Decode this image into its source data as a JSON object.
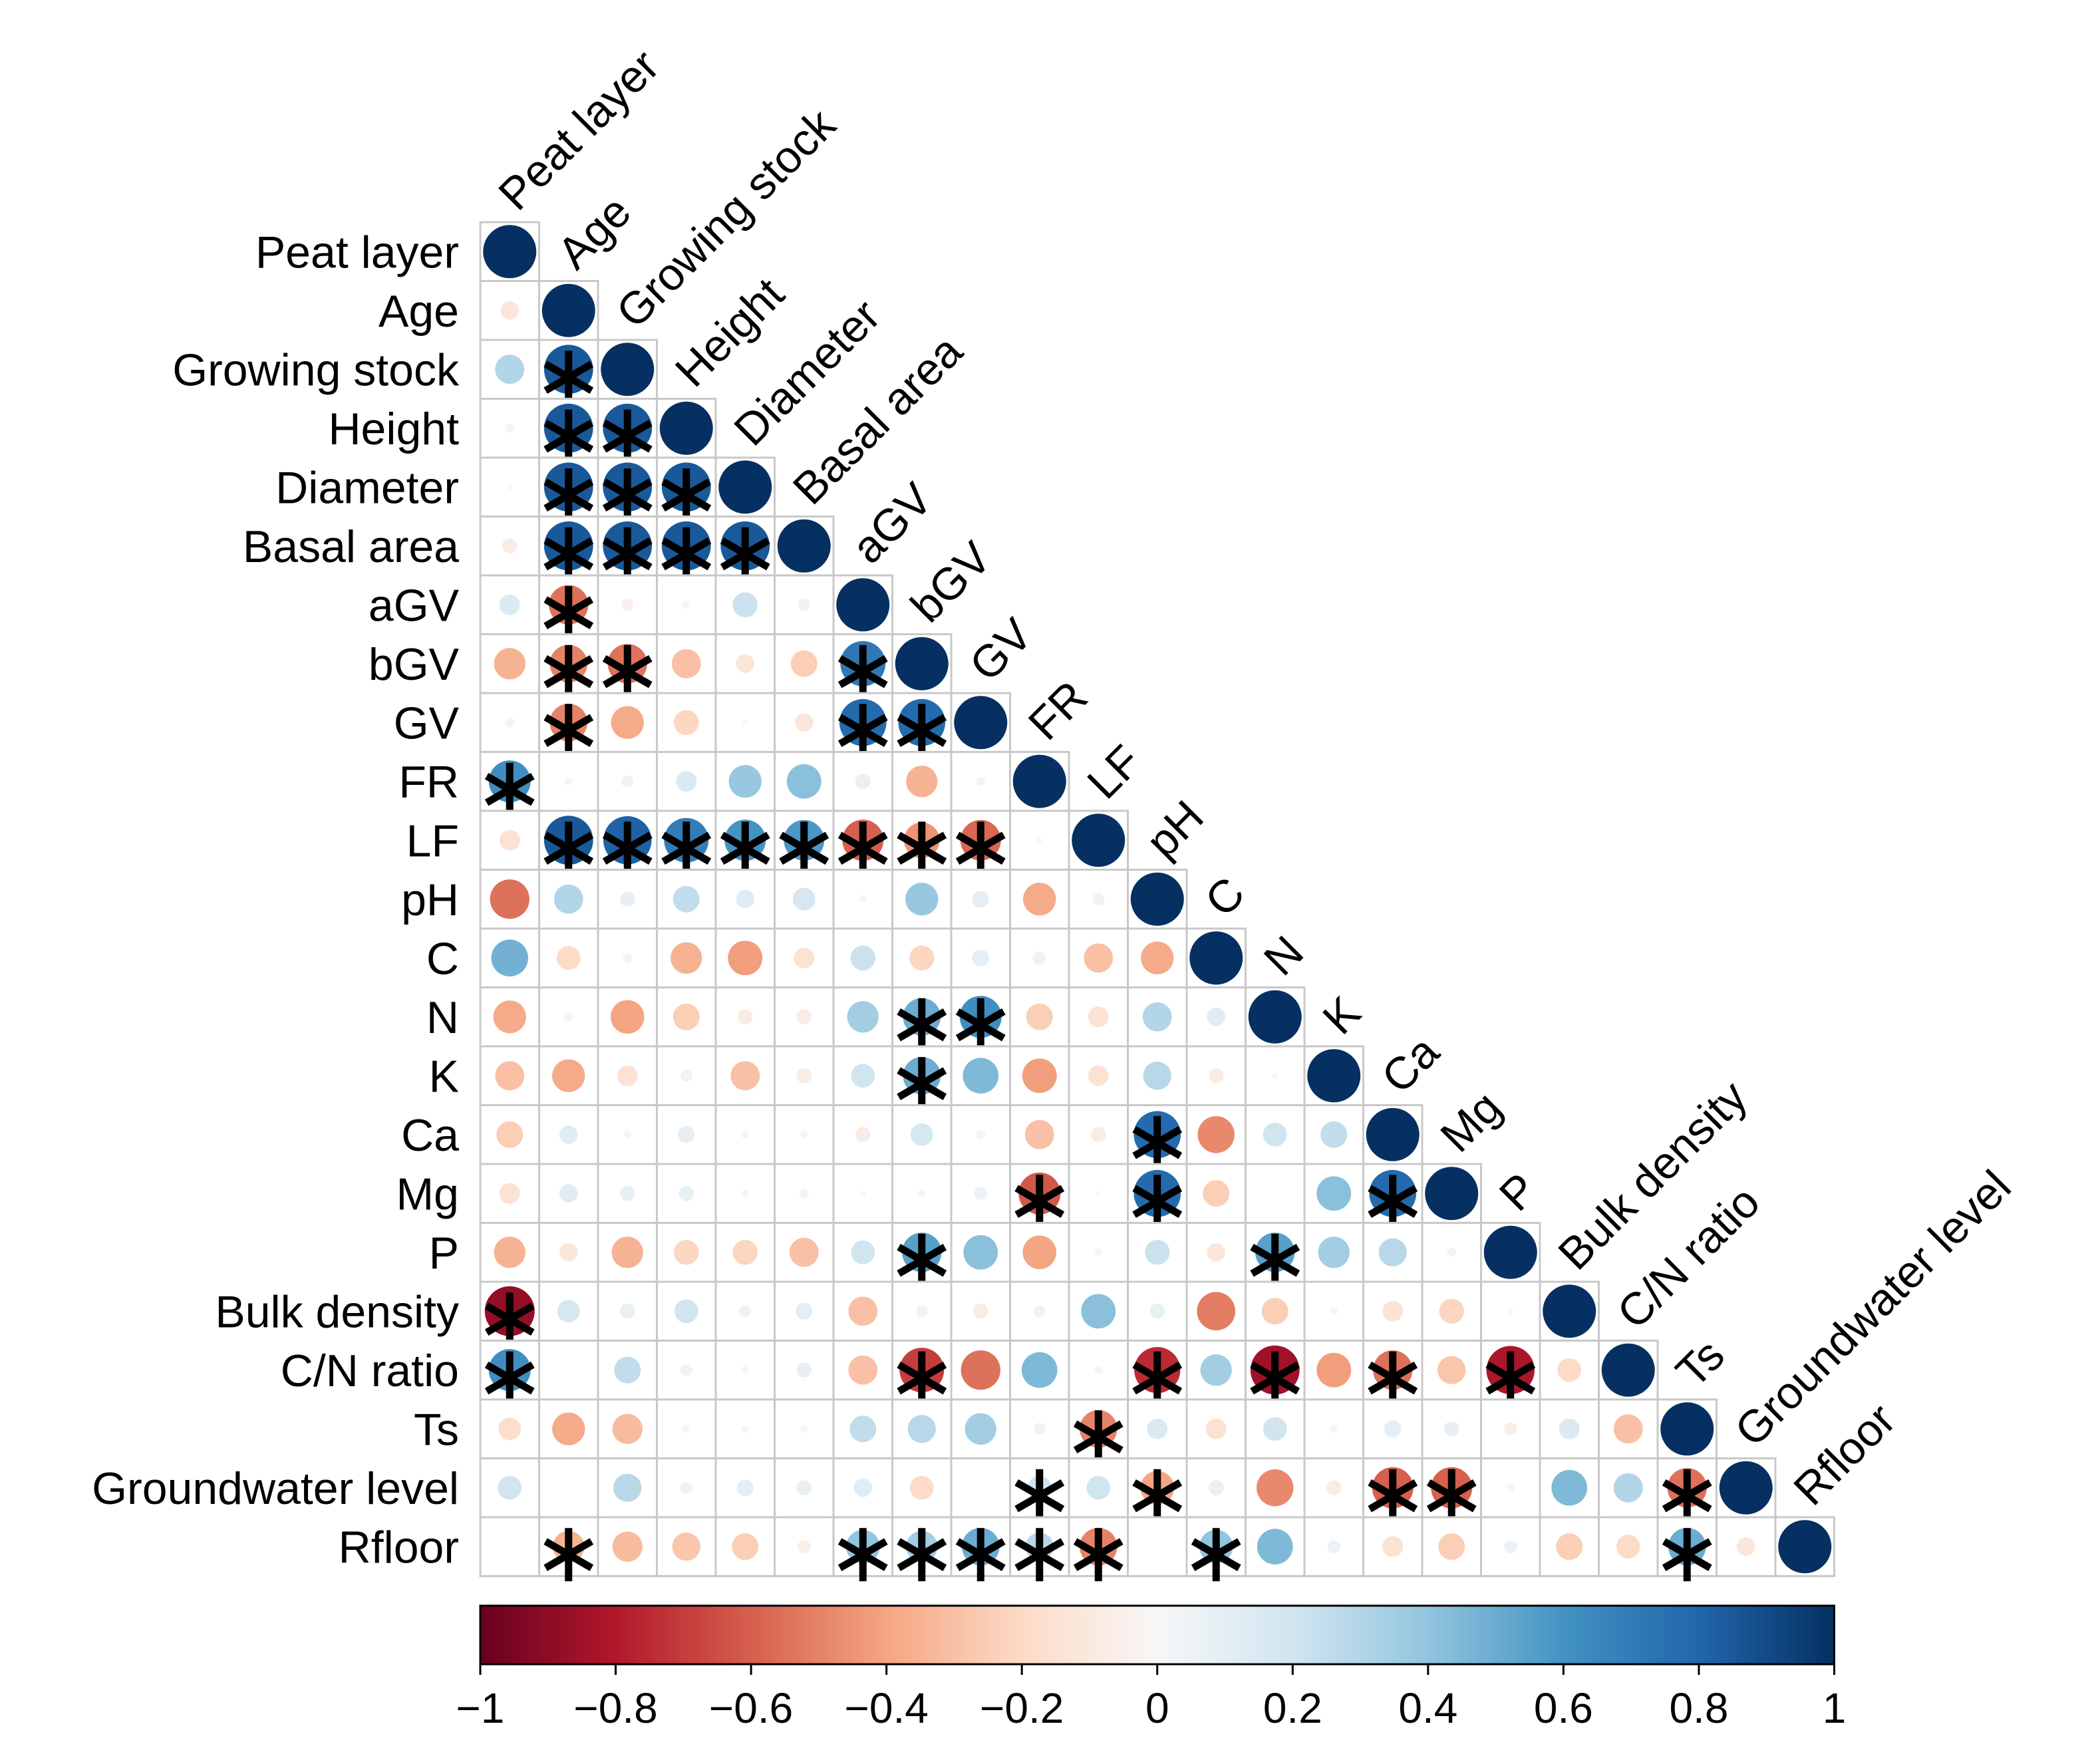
{
  "chart_data": {
    "type": "heatmap",
    "subtype": "correlation-lower-triangle",
    "title": "",
    "variables": [
      "Peat layer",
      "Age",
      "Growing stock",
      "Height",
      "Diameter",
      "Basal area",
      "aGV",
      "bGV",
      "GV",
      "FR",
      "LF",
      "pH",
      "C",
      "N",
      "K",
      "Ca",
      "Mg",
      "P",
      "Bulk density",
      "C/N ratio",
      "Ts",
      "Groundwater level",
      "Rfloor"
    ],
    "value_range": [
      -1,
      1
    ],
    "colorbar": {
      "ticks": [
        -1,
        -0.8,
        -0.6,
        -0.4,
        -0.2,
        0,
        0.2,
        0.4,
        0.6,
        0.8,
        1
      ],
      "tick_labels": [
        "−1",
        "−0.8",
        "−0.6",
        "−0.4",
        "−0.2",
        "0",
        "0.2",
        "0.4",
        "0.6",
        "0.8",
        "1"
      ],
      "colors": [
        "#67001f",
        "#b2182b",
        "#d6604d",
        "#f4a582",
        "#fddbc7",
        "#f7f7f7",
        "#d1e5f0",
        "#92c5de",
        "#4393c3",
        "#2166ac",
        "#053061"
      ]
    },
    "significance_marker": "*",
    "correlations": [
      [
        1.0
      ],
      [
        -0.12,
        1.0
      ],
      [
        0.3,
        0.85,
        1.0
      ],
      [
        -0.03,
        0.85,
        0.85,
        1.0
      ],
      [
        0.01,
        0.85,
        0.85,
        0.85,
        1.0
      ],
      [
        -0.08,
        0.85,
        0.85,
        0.85,
        0.85,
        1.0
      ],
      [
        0.15,
        -0.55,
        -0.05,
        0.02,
        0.22,
        0.05,
        1.0
      ],
      [
        -0.35,
        -0.5,
        -0.55,
        -0.3,
        -0.12,
        -0.25,
        0.72,
        1.0
      ],
      [
        -0.03,
        -0.5,
        -0.38,
        -0.22,
        0.01,
        -0.12,
        0.78,
        0.78,
        1.0
      ],
      [
        0.62,
        -0.02,
        0.05,
        0.15,
        0.38,
        0.42,
        0.08,
        -0.35,
        0.03,
        1.0
      ],
      [
        -0.15,
        0.85,
        0.82,
        0.7,
        0.6,
        0.58,
        -0.6,
        -0.45,
        -0.58,
        0.01,
        1.0
      ],
      [
        -0.55,
        0.3,
        0.08,
        0.25,
        0.12,
        0.18,
        0.02,
        0.38,
        0.1,
        -0.38,
        0.05,
        1.0
      ],
      [
        0.48,
        -0.2,
        -0.03,
        -0.35,
        -0.42,
        -0.15,
        0.22,
        -0.22,
        0.1,
        0.06,
        -0.3,
        -0.38,
        1.0
      ],
      [
        -0.38,
        -0.03,
        -0.4,
        -0.25,
        -0.08,
        -0.08,
        0.35,
        0.5,
        0.62,
        -0.25,
        -0.15,
        0.3,
        0.12,
        1.0
      ],
      [
        -0.3,
        -0.38,
        -0.15,
        -0.05,
        -0.3,
        -0.08,
        0.2,
        0.5,
        0.45,
        -0.42,
        -0.15,
        0.28,
        -0.08,
        0.01,
        1.0
      ],
      [
        -0.25,
        0.12,
        0.02,
        0.1,
        0.02,
        0.02,
        -0.08,
        0.18,
        -0.03,
        -0.3,
        -0.08,
        0.78,
        -0.48,
        0.2,
        0.25,
        1.0
      ],
      [
        -0.15,
        0.12,
        0.08,
        0.08,
        0.02,
        -0.03,
        0.01,
        0.02,
        0.06,
        -0.62,
        0.01,
        0.78,
        -0.25,
        0.0,
        0.42,
        0.78,
        1.0
      ],
      [
        -0.35,
        -0.12,
        -0.35,
        -0.22,
        -0.22,
        -0.3,
        0.2,
        0.55,
        0.42,
        -0.4,
        0.02,
        0.22,
        -0.12,
        0.55,
        0.35,
        0.28,
        0.03,
        1.0
      ],
      [
        -0.88,
        0.18,
        0.08,
        0.2,
        0.05,
        0.1,
        -0.3,
        0.05,
        -0.08,
        -0.05,
        0.42,
        0.08,
        -0.52,
        -0.25,
        0.02,
        -0.15,
        -0.22,
        0.01,
        1.0
      ],
      [
        0.62,
        0.0,
        0.25,
        0.05,
        0.02,
        0.08,
        -0.3,
        -0.7,
        -0.55,
        0.45,
        0.02,
        -0.75,
        0.35,
        -0.85,
        -0.42,
        -0.55,
        -0.28,
        -0.82,
        -0.2,
        1.0
      ],
      [
        -0.18,
        -0.38,
        -0.32,
        0.02,
        0.02,
        0.02,
        0.25,
        0.28,
        0.35,
        0.05,
        -0.5,
        0.15,
        -0.15,
        0.2,
        0.02,
        0.1,
        0.08,
        -0.06,
        0.15,
        -0.3,
        1.0
      ],
      [
        0.2,
        0.0,
        0.28,
        0.05,
        0.1,
        0.08,
        0.12,
        -0.2,
        0.0,
        0.2,
        0.2,
        -0.4,
        0.08,
        -0.48,
        -0.08,
        -0.6,
        -0.6,
        0.02,
        0.45,
        0.3,
        -0.55,
        1.0
      ],
      [
        0.0,
        -0.35,
        -0.32,
        -0.28,
        -0.25,
        -0.06,
        0.4,
        0.35,
        0.5,
        0.28,
        -0.5,
        0.0,
        0.4,
        0.45,
        0.06,
        -0.15,
        -0.25,
        0.06,
        -0.25,
        -0.2,
        0.5,
        -0.12,
        1.0
      ]
    ],
    "significant": [
      [
        2,
        1
      ],
      [
        3,
        1
      ],
      [
        3,
        2
      ],
      [
        4,
        1
      ],
      [
        4,
        2
      ],
      [
        4,
        3
      ],
      [
        5,
        1
      ],
      [
        5,
        2
      ],
      [
        5,
        3
      ],
      [
        5,
        4
      ],
      [
        6,
        1
      ],
      [
        7,
        1
      ],
      [
        7,
        2
      ],
      [
        7,
        6
      ],
      [
        8,
        1
      ],
      [
        8,
        6
      ],
      [
        8,
        7
      ],
      [
        9,
        0
      ],
      [
        10,
        1
      ],
      [
        10,
        2
      ],
      [
        10,
        3
      ],
      [
        10,
        4
      ],
      [
        10,
        5
      ],
      [
        10,
        6
      ],
      [
        10,
        7
      ],
      [
        10,
        8
      ],
      [
        13,
        7
      ],
      [
        13,
        8
      ],
      [
        14,
        7
      ],
      [
        15,
        11
      ],
      [
        16,
        9
      ],
      [
        16,
        11
      ],
      [
        16,
        15
      ],
      [
        17,
        7
      ],
      [
        17,
        13
      ],
      [
        18,
        0
      ],
      [
        19,
        0
      ],
      [
        19,
        7
      ],
      [
        19,
        11
      ],
      [
        19,
        13
      ],
      [
        19,
        15
      ],
      [
        19,
        17
      ],
      [
        20,
        10
      ],
      [
        21,
        9
      ],
      [
        21,
        11
      ],
      [
        21,
        15
      ],
      [
        21,
        16
      ],
      [
        21,
        20
      ],
      [
        22,
        1
      ],
      [
        22,
        6
      ],
      [
        22,
        7
      ],
      [
        22,
        8
      ],
      [
        22,
        9
      ],
      [
        22,
        10
      ],
      [
        22,
        12
      ],
      [
        22,
        20
      ]
    ]
  }
}
